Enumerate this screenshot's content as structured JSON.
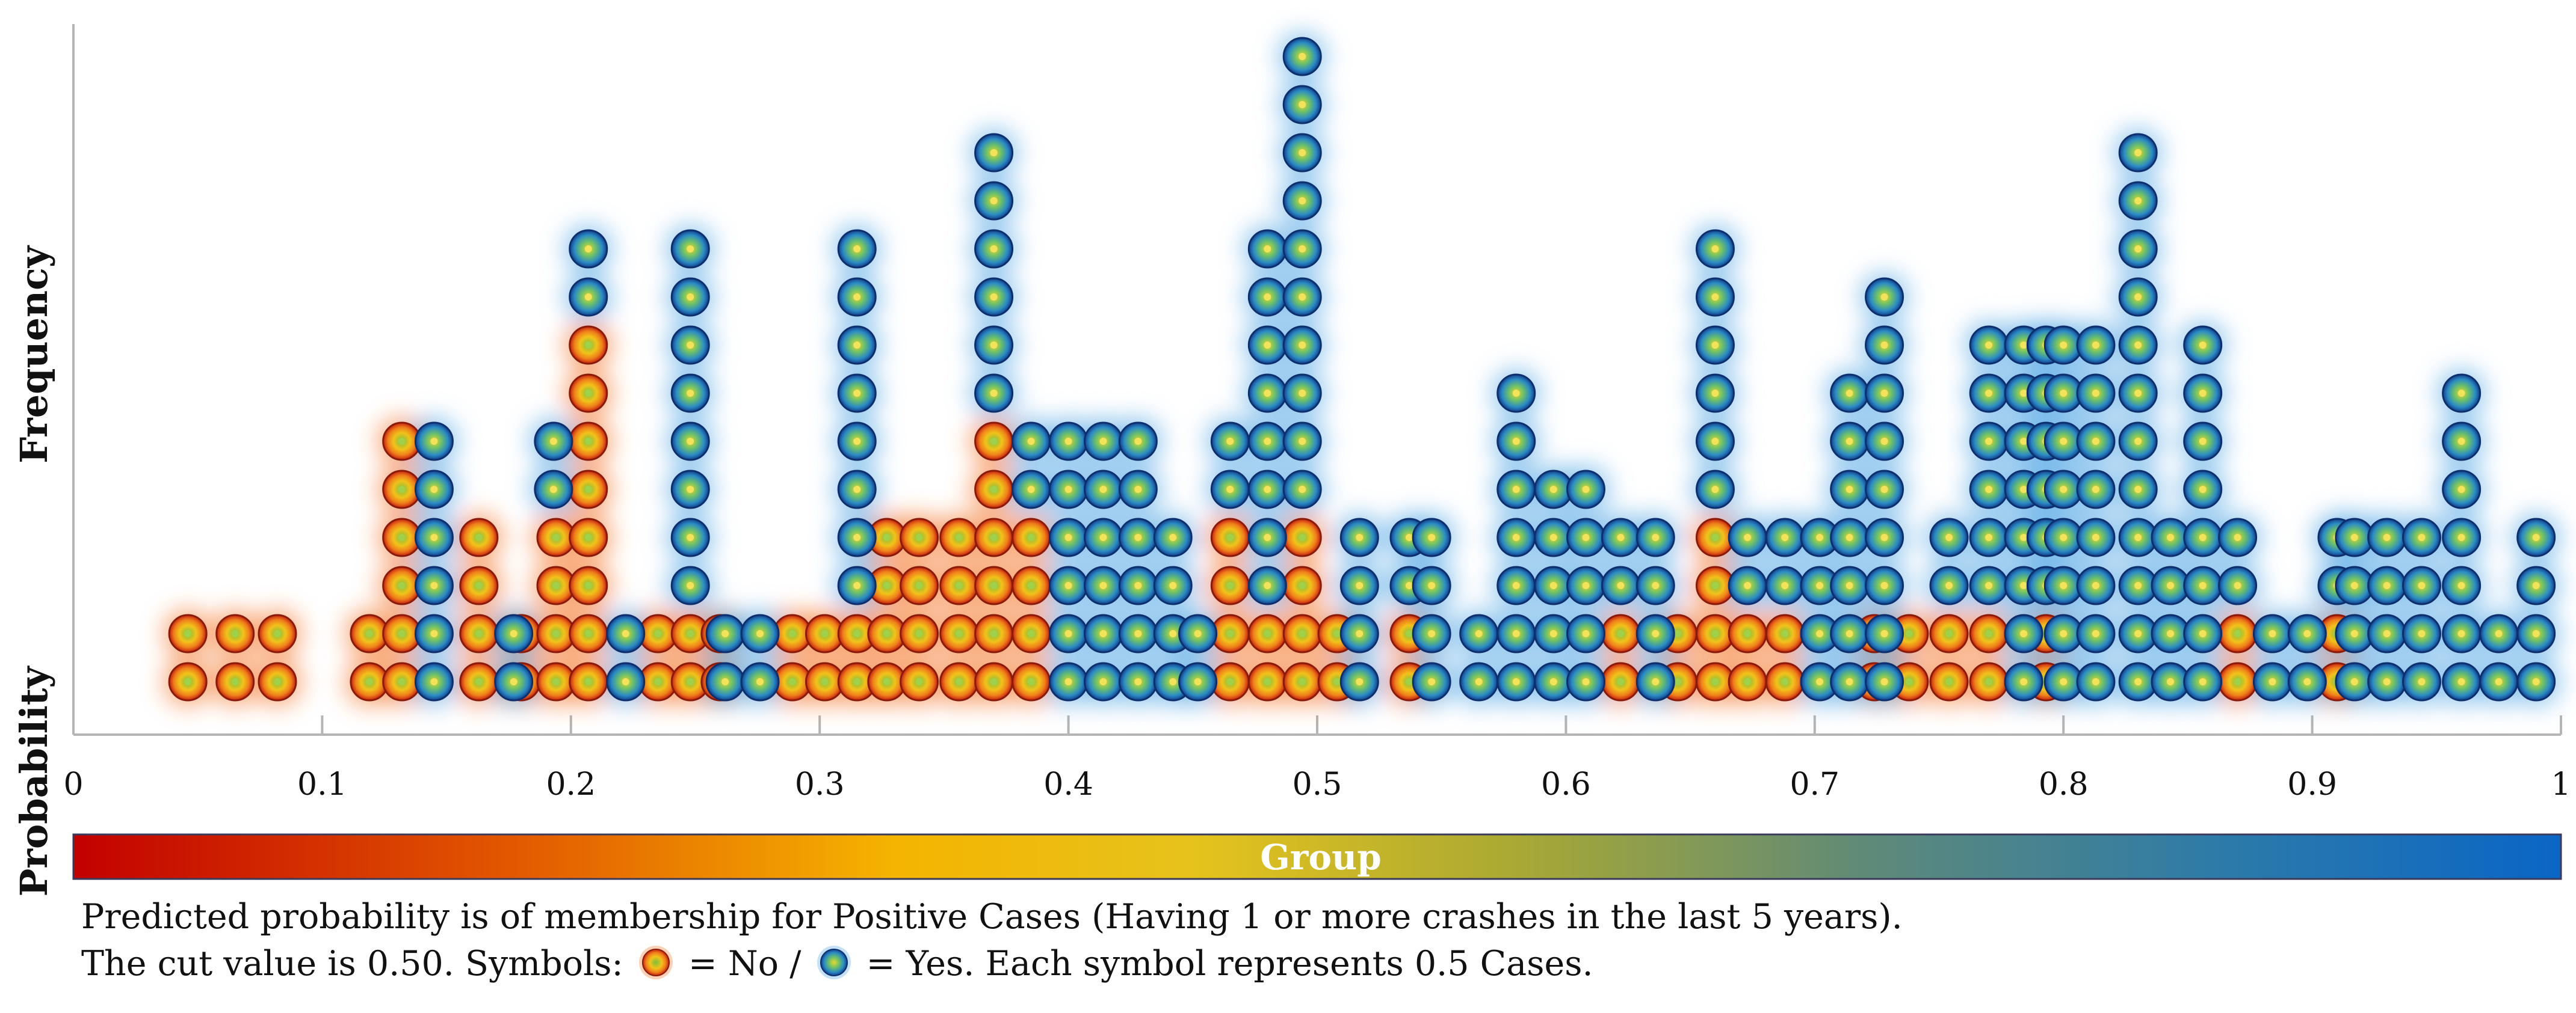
{
  "chart_data": {
    "type": "scatter",
    "subtype": "classification-probability-dot-histogram",
    "y_axis_label": "Frequency",
    "x_axis_label": "Probability",
    "xlim": [
      0,
      1
    ],
    "x_ticks": [
      0,
      0.1,
      0.2,
      0.3,
      0.4,
      0.5,
      0.6,
      0.7,
      0.8,
      0.9,
      1
    ],
    "x_tick_labels": [
      "0",
      "0.1",
      "0.2",
      "0.3",
      "0.4",
      "0.5",
      "0.6",
      "0.7",
      "0.8",
      "0.9",
      "1"
    ],
    "color_bar_label": "Group",
    "color_bar_colors": [
      "#c20000",
      "#e35a00",
      "#f0a000",
      "#f5c000",
      "#b8ad2a",
      "#6f8f6f",
      "#2f7faa",
      "#0a68c4"
    ],
    "unit_per_symbol": 0.5,
    "series": [
      {
        "name": "No",
        "color": "#e8561a",
        "glow": "#f47a30",
        "columns": [
          {
            "x": 0.046,
            "count": 2
          },
          {
            "x": 0.065,
            "count": 2
          },
          {
            "x": 0.082,
            "count": 2
          },
          {
            "x": 0.119,
            "count": 2
          },
          {
            "x": 0.132,
            "count": 6
          },
          {
            "x": 0.163,
            "count": 4
          },
          {
            "x": 0.18,
            "count": 2
          },
          {
            "x": 0.194,
            "count": 4
          },
          {
            "x": 0.207,
            "count": 8
          },
          {
            "x": 0.235,
            "count": 2
          },
          {
            "x": 0.248,
            "count": 2
          },
          {
            "x": 0.26,
            "count": 2
          },
          {
            "x": 0.289,
            "count": 2
          },
          {
            "x": 0.302,
            "count": 2
          },
          {
            "x": 0.315,
            "count": 2
          },
          {
            "x": 0.327,
            "count": 4
          },
          {
            "x": 0.34,
            "count": 4
          },
          {
            "x": 0.356,
            "count": 4
          },
          {
            "x": 0.37,
            "count": 6
          },
          {
            "x": 0.385,
            "count": 4
          },
          {
            "x": 0.465,
            "count": 4
          },
          {
            "x": 0.48,
            "count": 2
          },
          {
            "x": 0.494,
            "count": 4
          },
          {
            "x": 0.508,
            "count": 2
          },
          {
            "x": 0.537,
            "count": 2
          },
          {
            "x": 0.622,
            "count": 2
          },
          {
            "x": 0.645,
            "count": 2
          },
          {
            "x": 0.66,
            "count": 4
          },
          {
            "x": 0.673,
            "count": 2
          },
          {
            "x": 0.688,
            "count": 2
          },
          {
            "x": 0.724,
            "count": 2
          },
          {
            "x": 0.738,
            "count": 2
          },
          {
            "x": 0.754,
            "count": 2
          },
          {
            "x": 0.77,
            "count": 2
          },
          {
            "x": 0.793,
            "count": 2
          },
          {
            "x": 0.87,
            "count": 2
          },
          {
            "x": 0.91,
            "count": 2
          }
        ]
      },
      {
        "name": "Yes",
        "color": "#2c73b5",
        "glow": "#5aa9e6",
        "columns": [
          {
            "x": 0.145,
            "count": 6
          },
          {
            "x": 0.177,
            "count": 2
          },
          {
            "x": 0.193,
            "count": 2
          },
          {
            "x": 0.207,
            "count": 2
          },
          {
            "x": 0.222,
            "count": 2
          },
          {
            "x": 0.248,
            "count": 8
          },
          {
            "x": 0.262,
            "count": 2
          },
          {
            "x": 0.276,
            "count": 2
          },
          {
            "x": 0.315,
            "count": 8
          },
          {
            "x": 0.37,
            "count": 6
          },
          {
            "x": 0.385,
            "count": 2
          },
          {
            "x": 0.4,
            "count": 6
          },
          {
            "x": 0.414,
            "count": 6
          },
          {
            "x": 0.428,
            "count": 6
          },
          {
            "x": 0.442,
            "count": 4
          },
          {
            "x": 0.452,
            "count": 2
          },
          {
            "x": 0.465,
            "count": 2
          },
          {
            "x": 0.48,
            "count": 8
          },
          {
            "x": 0.494,
            "count": 10
          },
          {
            "x": 0.517,
            "count": 4
          },
          {
            "x": 0.537,
            "count": 2
          },
          {
            "x": 0.546,
            "count": 4
          },
          {
            "x": 0.565,
            "count": 2
          },
          {
            "x": 0.58,
            "count": 7
          },
          {
            "x": 0.595,
            "count": 5
          },
          {
            "x": 0.608,
            "count": 5
          },
          {
            "x": 0.622,
            "count": 2
          },
          {
            "x": 0.636,
            "count": 4
          },
          {
            "x": 0.66,
            "count": 6
          },
          {
            "x": 0.673,
            "count": 2
          },
          {
            "x": 0.688,
            "count": 2
          },
          {
            "x": 0.702,
            "count": 4
          },
          {
            "x": 0.714,
            "count": 7
          },
          {
            "x": 0.728,
            "count": 9
          },
          {
            "x": 0.754,
            "count": 2
          },
          {
            "x": 0.77,
            "count": 6
          },
          {
            "x": 0.784,
            "count": 8
          },
          {
            "x": 0.793,
            "count": 6
          },
          {
            "x": 0.8,
            "count": 8
          },
          {
            "x": 0.813,
            "count": 8
          },
          {
            "x": 0.83,
            "count": 12
          },
          {
            "x": 0.843,
            "count": 4
          },
          {
            "x": 0.856,
            "count": 8
          },
          {
            "x": 0.87,
            "count": 2
          },
          {
            "x": 0.884,
            "count": 2
          },
          {
            "x": 0.898,
            "count": 2
          },
          {
            "x": 0.91,
            "count": 2
          },
          {
            "x": 0.917,
            "count": 4
          },
          {
            "x": 0.93,
            "count": 4
          },
          {
            "x": 0.944,
            "count": 4
          },
          {
            "x": 0.96,
            "count": 7
          },
          {
            "x": 0.975,
            "count": 2
          },
          {
            "x": 0.99,
            "count": 4
          }
        ]
      }
    ]
  },
  "caption": {
    "line1": "Predicted probability is of membership for Positive Cases (Having 1 or more crashes in the last 5 years).",
    "line2_prefix": "The cut value is 0.50. Symbols:",
    "line2_no": "= No /",
    "line2_yes": "= Yes. Each symbol represents 0.5 Cases."
  }
}
